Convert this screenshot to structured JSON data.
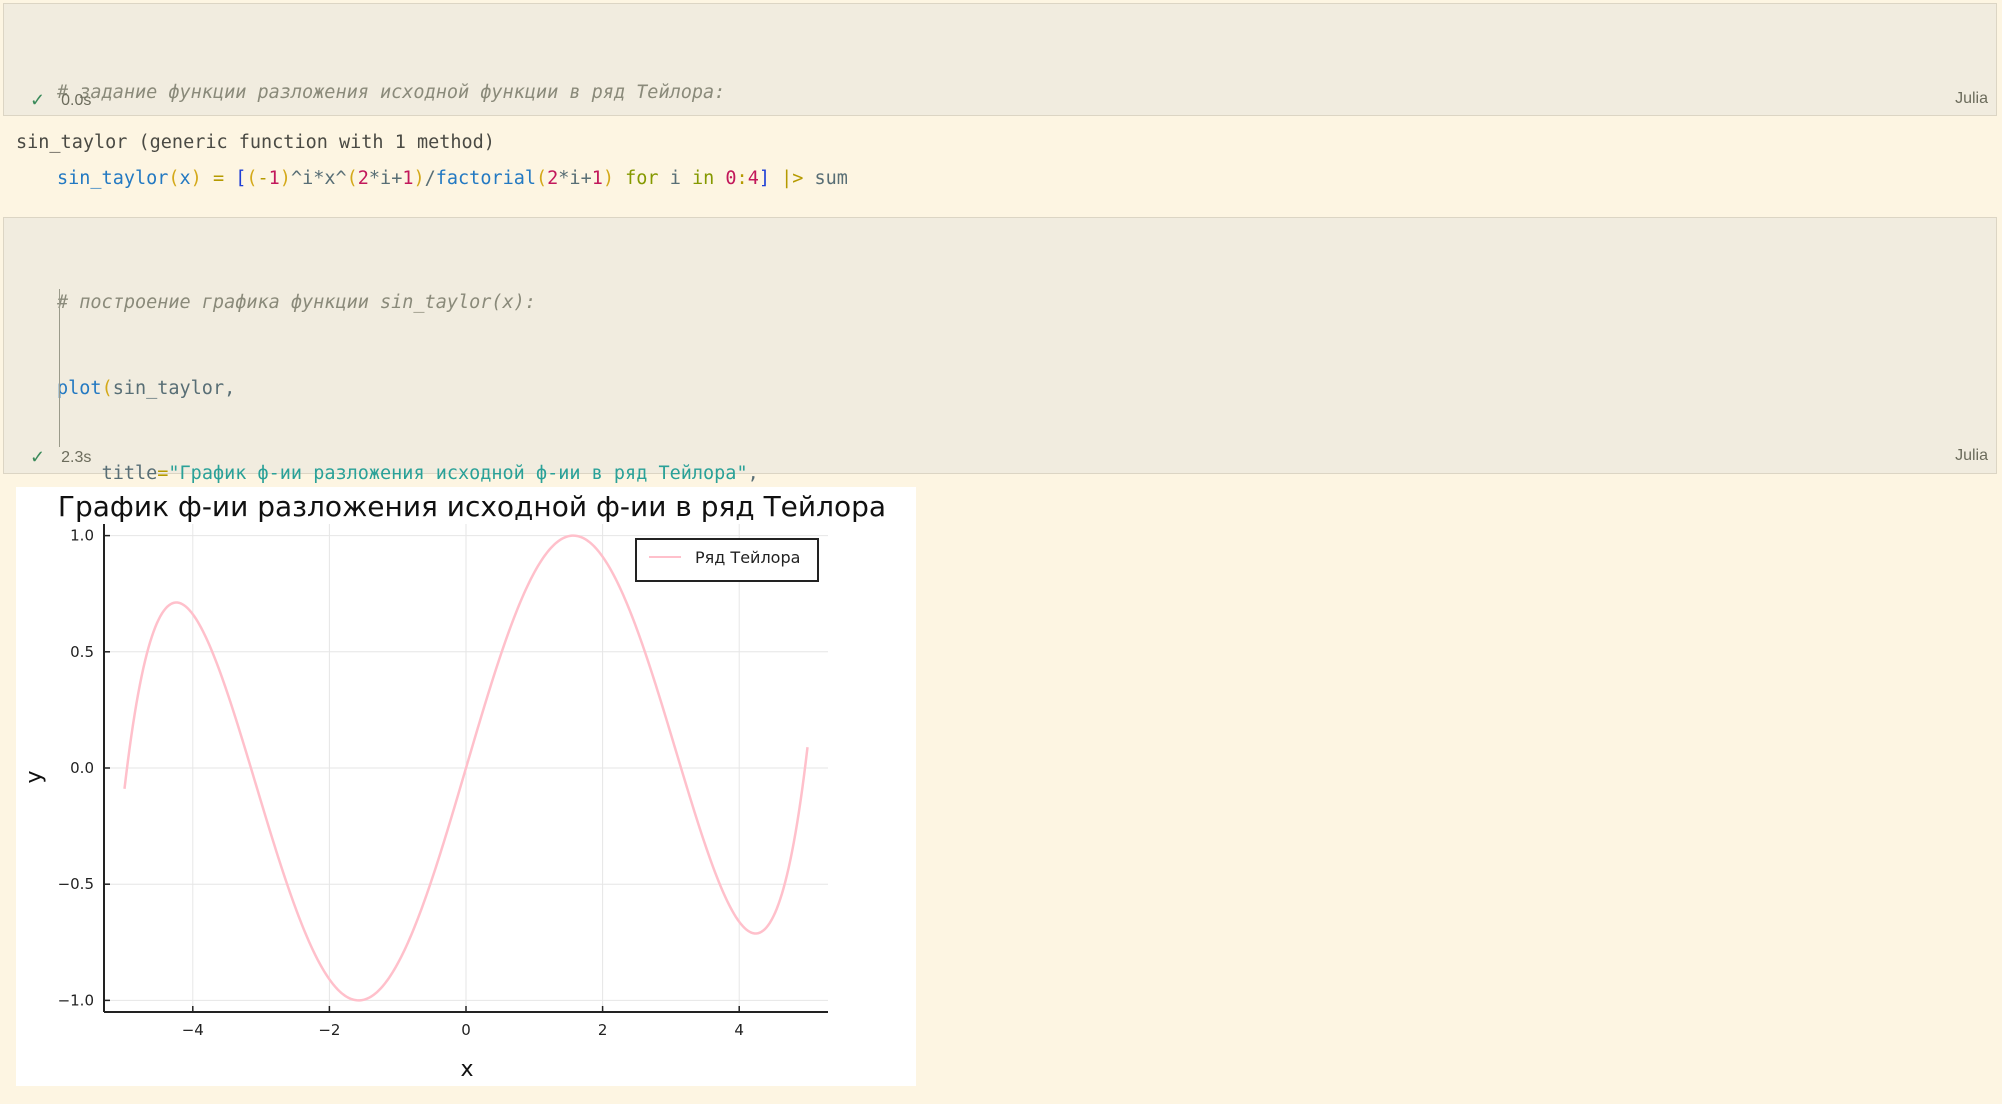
{
  "cell1": {
    "comment": "# задание функции разложения исходной функции в ряд Тейлора:",
    "status_time": "0.0s",
    "language": "Julia"
  },
  "output1": "sin_taylor (generic function with 1 method)",
  "cell2": {
    "comment": "# построение графика функции sin_taylor(x):",
    "status_time": "2.3s",
    "language": "Julia"
  },
  "chart_data": {
    "type": "line",
    "title": "График ф-ии разложения исходной ф-ии в ряд Тейлора",
    "xlabel": "x",
    "ylabel": "y",
    "xlim": [
      -5.3,
      5.3
    ],
    "ylim": [
      -1.05,
      1.05
    ],
    "x_ticks": [
      -4,
      -2,
      0,
      2,
      4
    ],
    "x_tick_labels": [
      "−4",
      "−2",
      "0",
      "2",
      "4"
    ],
    "y_ticks": [
      -1.0,
      -0.5,
      0.0,
      0.5,
      1.0
    ],
    "y_tick_labels": [
      "−1.0",
      "−0.5",
      "0.0",
      "0.5",
      "1.0"
    ],
    "grid": true,
    "legend_position": "top-right",
    "series": [
      {
        "name": "Ряд Тейлора",
        "color": "#ffc0cb",
        "function": "sum_{i=0..4} (-1)^i x^(2i+1)/(2i+1)!",
        "x_range": [
          -5,
          5
        ]
      }
    ]
  }
}
